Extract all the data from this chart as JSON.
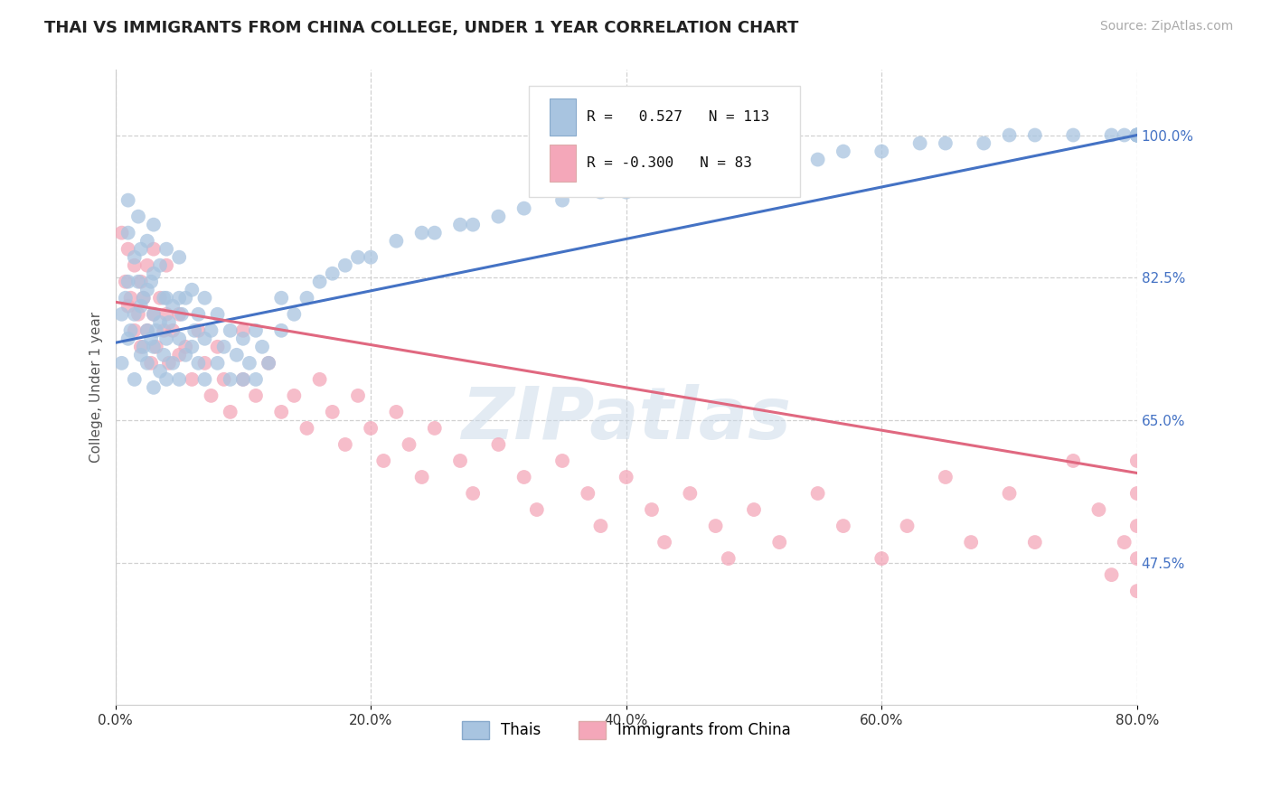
{
  "title": "THAI VS IMMIGRANTS FROM CHINA COLLEGE, UNDER 1 YEAR CORRELATION CHART",
  "source_text": "Source: ZipAtlas.com",
  "ylabel": "College, Under 1 year",
  "x_min": 0.0,
  "x_max": 0.8,
  "y_min": 0.3,
  "y_max": 1.08,
  "x_tick_labels": [
    "0.0%",
    "20.0%",
    "40.0%",
    "60.0%",
    "80.0%"
  ],
  "x_tick_vals": [
    0.0,
    0.2,
    0.4,
    0.6,
    0.8
  ],
  "y_tick_labels": [
    "47.5%",
    "65.0%",
    "82.5%",
    "100.0%"
  ],
  "y_tick_vals": [
    0.475,
    0.65,
    0.825,
    1.0
  ],
  "r_thai": 0.527,
  "n_thai": 113,
  "r_china": -0.3,
  "n_china": 83,
  "thai_color": "#a8c4e0",
  "china_color": "#f4a7b9",
  "thai_line_color": "#4472c4",
  "china_line_color": "#e06880",
  "legend_label_thai": "Thais",
  "legend_label_china": "Immigrants from China",
  "watermark": "ZIPatlas",
  "background_color": "#ffffff",
  "grid_color": "#cccccc",
  "thai_line_x0": 0.0,
  "thai_line_y0": 0.745,
  "thai_line_x1": 0.8,
  "thai_line_y1": 1.0,
  "china_line_x0": 0.0,
  "china_line_y0": 0.795,
  "china_line_x1": 0.8,
  "china_line_y1": 0.585,
  "thai_scatter_x": [
    0.005,
    0.005,
    0.008,
    0.01,
    0.01,
    0.01,
    0.01,
    0.012,
    0.015,
    0.015,
    0.015,
    0.018,
    0.018,
    0.02,
    0.02,
    0.02,
    0.022,
    0.022,
    0.025,
    0.025,
    0.025,
    0.025,
    0.028,
    0.028,
    0.03,
    0.03,
    0.03,
    0.03,
    0.03,
    0.032,
    0.035,
    0.035,
    0.035,
    0.038,
    0.038,
    0.04,
    0.04,
    0.04,
    0.04,
    0.042,
    0.045,
    0.045,
    0.05,
    0.05,
    0.05,
    0.05,
    0.052,
    0.055,
    0.055,
    0.06,
    0.06,
    0.062,
    0.065,
    0.065,
    0.07,
    0.07,
    0.07,
    0.075,
    0.08,
    0.08,
    0.085,
    0.09,
    0.09,
    0.095,
    0.1,
    0.1,
    0.105,
    0.11,
    0.11,
    0.115,
    0.12,
    0.13,
    0.13,
    0.14,
    0.15,
    0.16,
    0.17,
    0.18,
    0.19,
    0.2,
    0.22,
    0.24,
    0.25,
    0.27,
    0.28,
    0.3,
    0.32,
    0.35,
    0.38,
    0.4,
    0.42,
    0.45,
    0.48,
    0.5,
    0.52,
    0.55,
    0.57,
    0.6,
    0.63,
    0.65,
    0.68,
    0.7,
    0.72,
    0.75,
    0.78,
    0.79,
    0.8,
    0.8,
    0.8,
    0.8,
    0.8,
    0.8,
    0.8
  ],
  "thai_scatter_y": [
    0.72,
    0.78,
    0.8,
    0.75,
    0.82,
    0.88,
    0.92,
    0.76,
    0.7,
    0.78,
    0.85,
    0.82,
    0.9,
    0.73,
    0.79,
    0.86,
    0.74,
    0.8,
    0.72,
    0.76,
    0.81,
    0.87,
    0.75,
    0.82,
    0.69,
    0.74,
    0.78,
    0.83,
    0.89,
    0.76,
    0.71,
    0.77,
    0.84,
    0.73,
    0.8,
    0.7,
    0.75,
    0.8,
    0.86,
    0.77,
    0.72,
    0.79,
    0.7,
    0.75,
    0.8,
    0.85,
    0.78,
    0.73,
    0.8,
    0.74,
    0.81,
    0.76,
    0.72,
    0.78,
    0.7,
    0.75,
    0.8,
    0.76,
    0.72,
    0.78,
    0.74,
    0.7,
    0.76,
    0.73,
    0.7,
    0.75,
    0.72,
    0.7,
    0.76,
    0.74,
    0.72,
    0.76,
    0.8,
    0.78,
    0.8,
    0.82,
    0.83,
    0.84,
    0.85,
    0.85,
    0.87,
    0.88,
    0.88,
    0.89,
    0.89,
    0.9,
    0.91,
    0.92,
    0.93,
    0.93,
    0.94,
    0.95,
    0.96,
    0.96,
    0.97,
    0.97,
    0.98,
    0.98,
    0.99,
    0.99,
    0.99,
    1.0,
    1.0,
    1.0,
    1.0,
    1.0,
    1.0,
    1.0,
    1.0,
    1.0,
    1.0,
    1.0,
    1.0
  ],
  "china_scatter_x": [
    0.005,
    0.008,
    0.01,
    0.01,
    0.012,
    0.015,
    0.015,
    0.018,
    0.02,
    0.02,
    0.022,
    0.025,
    0.025,
    0.028,
    0.03,
    0.03,
    0.032,
    0.035,
    0.038,
    0.04,
    0.04,
    0.042,
    0.045,
    0.05,
    0.05,
    0.055,
    0.06,
    0.065,
    0.07,
    0.075,
    0.08,
    0.085,
    0.09,
    0.1,
    0.1,
    0.11,
    0.12,
    0.13,
    0.14,
    0.15,
    0.16,
    0.17,
    0.18,
    0.19,
    0.2,
    0.21,
    0.22,
    0.23,
    0.24,
    0.25,
    0.27,
    0.28,
    0.3,
    0.32,
    0.33,
    0.35,
    0.37,
    0.38,
    0.4,
    0.42,
    0.43,
    0.45,
    0.47,
    0.48,
    0.5,
    0.52,
    0.55,
    0.57,
    0.6,
    0.62,
    0.65,
    0.67,
    0.7,
    0.72,
    0.75,
    0.77,
    0.78,
    0.79,
    0.8,
    0.8,
    0.8,
    0.8,
    0.8
  ],
  "china_scatter_y": [
    0.88,
    0.82,
    0.79,
    0.86,
    0.8,
    0.76,
    0.84,
    0.78,
    0.82,
    0.74,
    0.8,
    0.76,
    0.84,
    0.72,
    0.78,
    0.86,
    0.74,
    0.8,
    0.76,
    0.78,
    0.84,
    0.72,
    0.76,
    0.73,
    0.78,
    0.74,
    0.7,
    0.76,
    0.72,
    0.68,
    0.74,
    0.7,
    0.66,
    0.7,
    0.76,
    0.68,
    0.72,
    0.66,
    0.68,
    0.64,
    0.7,
    0.66,
    0.62,
    0.68,
    0.64,
    0.6,
    0.66,
    0.62,
    0.58,
    0.64,
    0.6,
    0.56,
    0.62,
    0.58,
    0.54,
    0.6,
    0.56,
    0.52,
    0.58,
    0.54,
    0.5,
    0.56,
    0.52,
    0.48,
    0.54,
    0.5,
    0.56,
    0.52,
    0.48,
    0.52,
    0.58,
    0.5,
    0.56,
    0.5,
    0.6,
    0.54,
    0.46,
    0.5,
    0.44,
    0.48,
    0.52,
    0.56,
    0.6
  ]
}
